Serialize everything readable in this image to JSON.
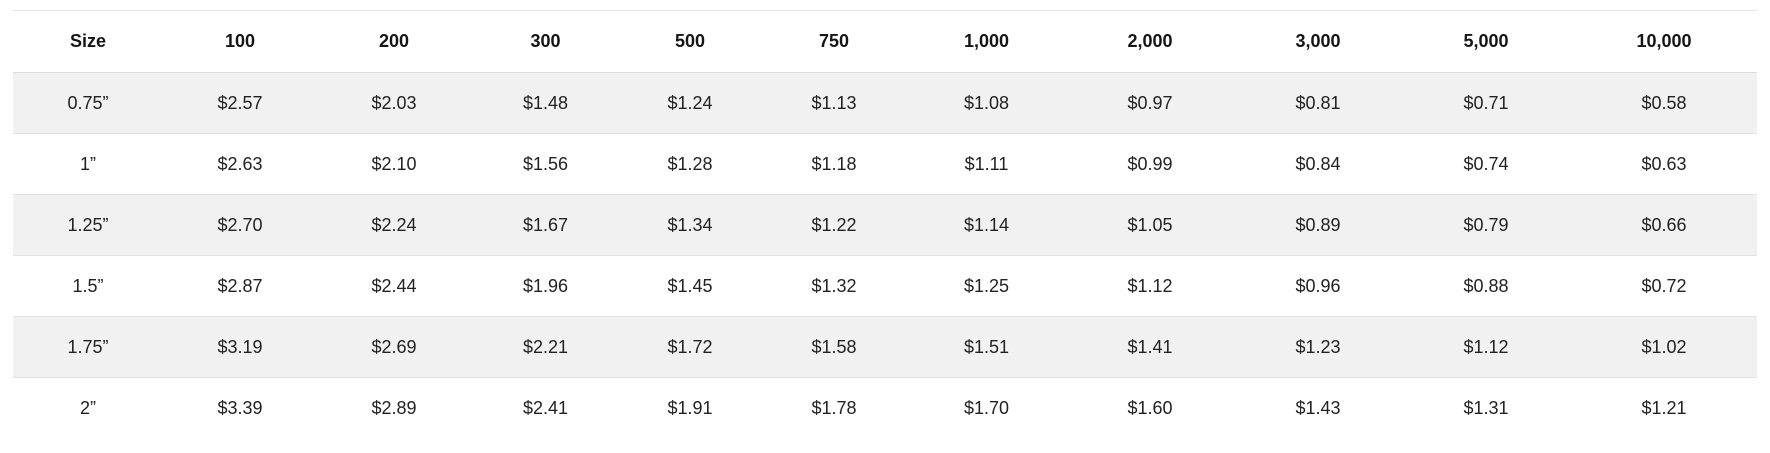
{
  "table": {
    "headers": [
      "Size",
      "100",
      "200",
      "300",
      "500",
      "750",
      "1,000",
      "2,000",
      "3,000",
      "5,000",
      "10,000"
    ],
    "rows": [
      {
        "size": "0.75”",
        "prices": [
          "$2.57",
          "$2.03",
          "$1.48",
          "$1.24",
          "$1.13",
          "$1.08",
          "$0.97",
          "$0.81",
          "$0.71",
          "$0.58"
        ]
      },
      {
        "size": "1”",
        "prices": [
          "$2.63",
          "$2.10",
          "$1.56",
          "$1.28",
          "$1.18",
          "$1.11",
          "$0.99",
          "$0.84",
          "$0.74",
          "$0.63"
        ]
      },
      {
        "size": "1.25”",
        "prices": [
          "$2.70",
          "$2.24",
          "$1.67",
          "$1.34",
          "$1.22",
          "$1.14",
          "$1.05",
          "$0.89",
          "$0.79",
          "$0.66"
        ]
      },
      {
        "size": "1.5”",
        "prices": [
          "$2.87",
          "$2.44",
          "$1.96",
          "$1.45",
          "$1.32",
          "$1.25",
          "$1.12",
          "$0.96",
          "$0.88",
          "$0.72"
        ]
      },
      {
        "size": "1.75”",
        "prices": [
          "$3.19",
          "$2.69",
          "$2.21",
          "$1.72",
          "$1.58",
          "$1.51",
          "$1.41",
          "$1.23",
          "$1.12",
          "$1.02"
        ]
      },
      {
        "size": "2”",
        "prices": [
          "$3.39",
          "$2.89",
          "$2.41",
          "$1.91",
          "$1.78",
          "$1.70",
          "$1.60",
          "$1.43",
          "$1.31",
          "$1.21"
        ]
      }
    ]
  },
  "colors": {
    "header_text": "#151515",
    "shaded_row": "#f1f1f1",
    "row_border": "#e2e2e2"
  }
}
